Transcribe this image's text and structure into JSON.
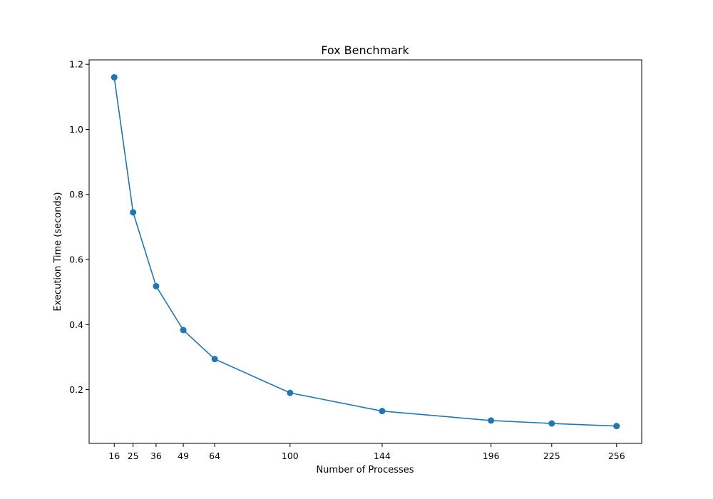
{
  "chart_data": {
    "type": "line",
    "title": "Fox Benchmark",
    "xlabel": "Number of Processes",
    "ylabel": "Execution Time (seconds)",
    "x": [
      16,
      25,
      36,
      49,
      64,
      100,
      144,
      196,
      225,
      256
    ],
    "series": [
      {
        "values": [
          1.16,
          0.745,
          0.518,
          0.383,
          0.294,
          0.19,
          0.134,
          0.105,
          0.096,
          0.088
        ],
        "color": "#1f77b4",
        "marker": "circle"
      }
    ],
    "x_ticks": [
      16,
      25,
      36,
      49,
      64,
      100,
      144,
      196,
      225,
      256
    ],
    "y_ticks": [
      0.2,
      0.4,
      0.6,
      0.8,
      1.0,
      1.2
    ],
    "y_tick_labels": [
      "0.2",
      "0.4",
      "0.6",
      "0.8",
      "1.0",
      "1.2"
    ],
    "xlim": [
      4,
      268
    ],
    "ylim": [
      0.0347,
      1.2136
    ],
    "grid": false,
    "legend": "none"
  }
}
